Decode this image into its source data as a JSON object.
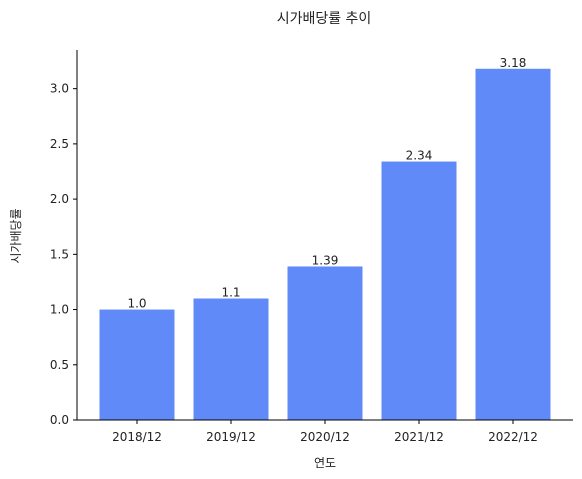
{
  "chart_data": {
    "type": "bar",
    "title": "시가배당률 추이",
    "xlabel": "연도",
    "ylabel": "시가배당률",
    "categories": [
      "2018/12",
      "2019/12",
      "2020/12",
      "2021/12",
      "2022/12"
    ],
    "values": [
      1.0,
      1.1,
      1.39,
      2.34,
      3.18
    ],
    "value_labels": [
      "1.0",
      "1.1",
      "1.39",
      "2.34",
      "3.18"
    ],
    "ylim": [
      0,
      3.35
    ],
    "yticks": [
      0.0,
      0.5,
      1.0,
      1.5,
      2.0,
      2.5,
      3.0
    ],
    "ytick_labels": [
      "0.0",
      "0.5",
      "1.0",
      "1.5",
      "2.0",
      "2.5",
      "3.0"
    ],
    "grid": false,
    "bar_color": "#5f8af7"
  }
}
